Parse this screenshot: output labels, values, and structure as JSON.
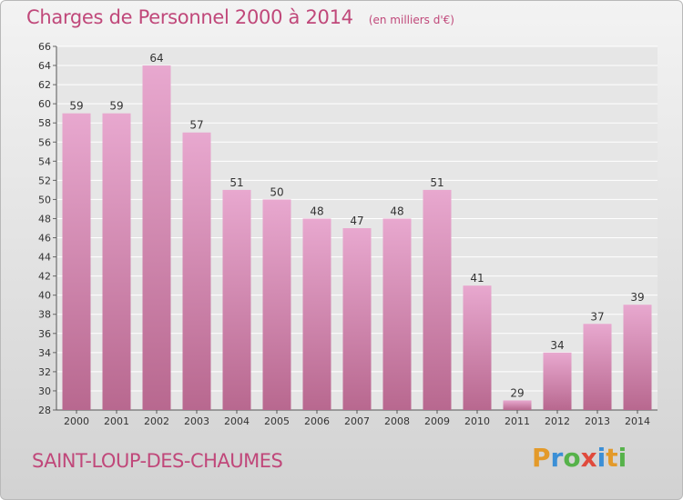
{
  "chart_data": {
    "type": "bar",
    "title": "Charges de Personnel 2000 à 2014",
    "subtitle": "(en milliers d'€)",
    "categories": [
      "2000",
      "2001",
      "2002",
      "2003",
      "2004",
      "2005",
      "2006",
      "2007",
      "2008",
      "2009",
      "2010",
      "2011",
      "2012",
      "2013",
      "2014"
    ],
    "values": [
      59,
      59,
      64,
      57,
      51,
      50,
      48,
      47,
      48,
      51,
      41,
      29,
      34,
      37,
      39
    ],
    "ylim": [
      28,
      66
    ],
    "yticks": [
      28,
      30,
      32,
      34,
      36,
      38,
      40,
      42,
      44,
      46,
      48,
      50,
      52,
      54,
      56,
      58,
      60,
      62,
      64,
      66
    ],
    "grid": true,
    "colors": {
      "bar_light": "#e8a8cf",
      "bar_dark": "#b8688f",
      "text": "#c0487a"
    }
  },
  "footer": {
    "city": "SAINT-LOUP-DES-CHAUMES",
    "brand_letters": [
      {
        "char": "P",
        "color": "#e39a2a"
      },
      {
        "char": "r",
        "color": "#3b8fd6"
      },
      {
        "char": "o",
        "color": "#56b24a"
      },
      {
        "char": "x",
        "color": "#e04a3c"
      },
      {
        "char": "i",
        "color": "#3b8fd6"
      },
      {
        "char": "t",
        "color": "#e39a2a"
      },
      {
        "char": "i",
        "color": "#56b24a"
      }
    ]
  }
}
